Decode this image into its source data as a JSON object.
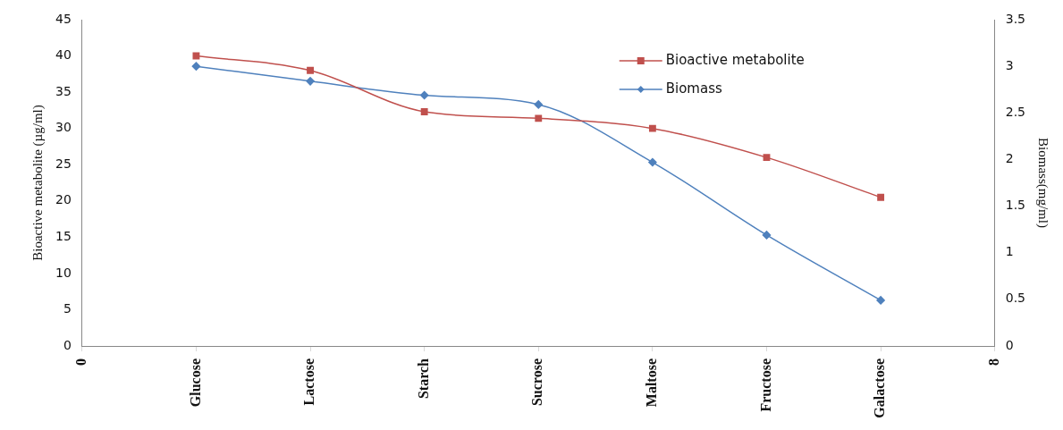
{
  "chart_data": {
    "type": "line",
    "ylabel": "Bioactive metabolite (µg/ml)",
    "y2label": "Biomass(mg/ml)",
    "categories": [
      "0",
      "Glucose",
      "Lactose",
      "Starch",
      "Sucrose",
      "Maltose",
      "Fructose",
      "Galactose",
      "8"
    ],
    "ylim": [
      0,
      45
    ],
    "yticks": [
      0,
      5,
      10,
      15,
      20,
      25,
      30,
      35,
      40,
      45
    ],
    "y2lim": [
      0,
      3.5
    ],
    "y2ticks": [
      0,
      0.5,
      1,
      1.5,
      2,
      2.5,
      3,
      3.5
    ],
    "legend": "top right",
    "grid": false,
    "series": [
      {
        "name": "Bioactive metabolite",
        "color": "#c0504d",
        "marker": "square",
        "values": [
          null,
          40,
          38,
          32.3,
          31.4,
          30,
          26,
          20.5,
          null
        ]
      },
      {
        "name": "Biomass",
        "color": "#4f81bd",
        "marker": "diamond",
        "axis": "y2",
        "values": [
          null,
          3.0,
          2.84,
          2.69,
          2.59,
          1.97,
          1.19,
          0.49,
          null
        ]
      }
    ]
  }
}
